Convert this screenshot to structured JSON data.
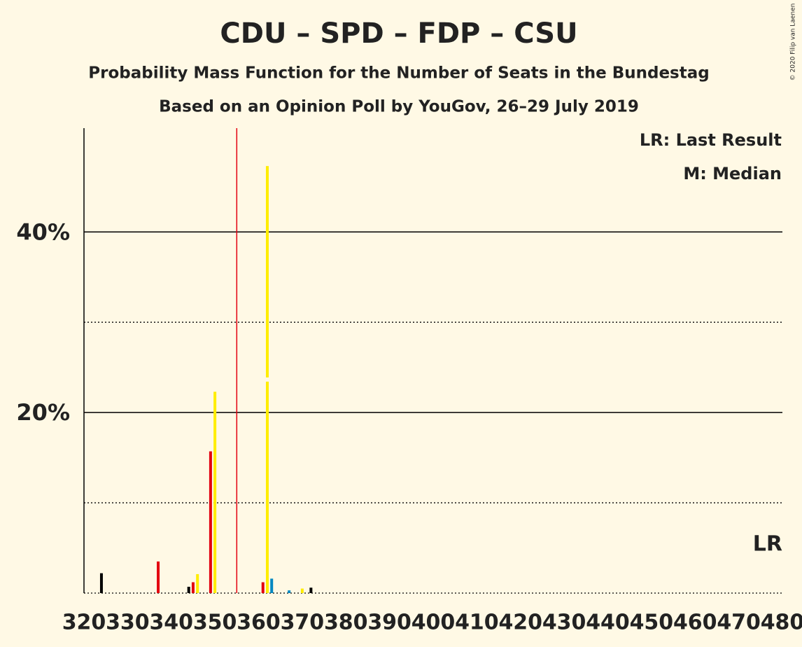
{
  "chart_data": {
    "type": "bar",
    "title": "CDU – SPD – FDP – CSU",
    "subtitle": "Probability Mass Function for the Number of Seats in the Bundestag",
    "subtitle2": "Based on an Opinion Poll by YouGov, 26–29 July 2019",
    "legend": [
      "LR: Last Result",
      "M: Median"
    ],
    "last_result_label": "LR",
    "last_result": 480,
    "median": 362,
    "majority": 355,
    "copyright": "© 2020 Filip van Laenen",
    "x": [
      324,
      337,
      344,
      345,
      346,
      349,
      350,
      361,
      362,
      363,
      367,
      370,
      372
    ],
    "values": [
      2.2,
      3.5,
      0.7,
      1.2,
      2.1,
      15.7,
      22.3,
      1.2,
      47.3,
      1.6,
      0.3,
      0.5,
      0.6
    ],
    "colors": [
      "#000000",
      "#e3000f",
      "#000000",
      "#e3000f",
      "#ffed00",
      "#e3000f",
      "#ffed00",
      "#e3000f",
      "#ffed00",
      "#0087c1",
      "#0087c1",
      "#ffed00",
      "#000000"
    ],
    "xlim": [
      320,
      480
    ],
    "xticks": [
      320,
      330,
      340,
      350,
      360,
      370,
      380,
      390,
      400,
      410,
      420,
      430,
      440,
      450,
      460,
      470,
      480
    ],
    "ylim": [
      0,
      51.5
    ],
    "yticks": [
      {
        "value": 20,
        "label": "20%"
      },
      {
        "value": 40,
        "label": "40%"
      }
    ],
    "minor_yticks": [
      0,
      10,
      30
    ]
  }
}
